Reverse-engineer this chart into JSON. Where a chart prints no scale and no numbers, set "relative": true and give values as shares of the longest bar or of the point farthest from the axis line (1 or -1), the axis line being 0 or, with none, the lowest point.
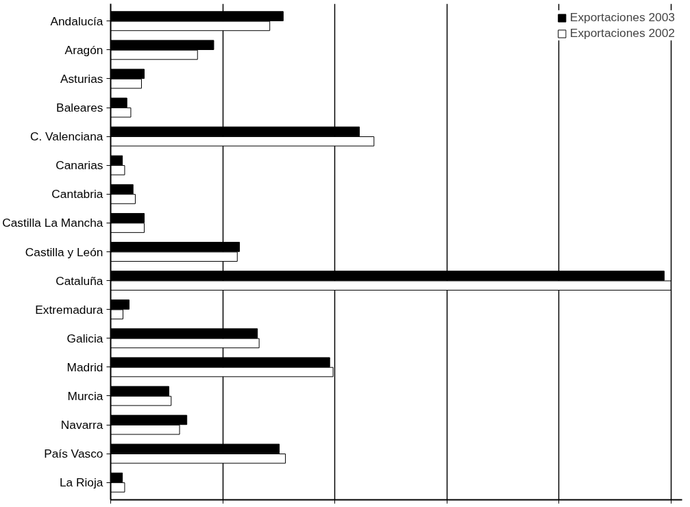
{
  "chart_data": {
    "type": "bar",
    "orientation": "horizontal",
    "relative": true,
    "grid": "x",
    "legend": "top right",
    "categories": [
      "Andalucía",
      "Aragón",
      "Asturias",
      "Baleares",
      "C. Valenciana",
      "Canarias",
      "Cantabria",
      "Castilla La Mancha",
      "Castilla y León",
      "Cataluña",
      "Extremadura",
      "Galicia",
      "Madrid",
      "Murcia",
      "Navarra",
      "País Vasco",
      "La Rioja"
    ],
    "series": [
      {
        "name": "Exportaciones 2003",
        "color": "#000000",
        "values": [
          0.308,
          0.184,
          0.06,
          0.029,
          0.444,
          0.021,
          0.04,
          0.06,
          0.23,
          0.988,
          0.033,
          0.262,
          0.391,
          0.104,
          0.136,
          0.301,
          0.021
        ]
      },
      {
        "name": "Exportaciones 2002",
        "color": "#ffffff",
        "values": [
          0.284,
          0.155,
          0.055,
          0.036,
          0.47,
          0.025,
          0.044,
          0.06,
          0.226,
          1,
          0.022,
          0.265,
          0.397,
          0.108,
          0.123,
          0.312,
          0.025
        ]
      }
    ]
  }
}
